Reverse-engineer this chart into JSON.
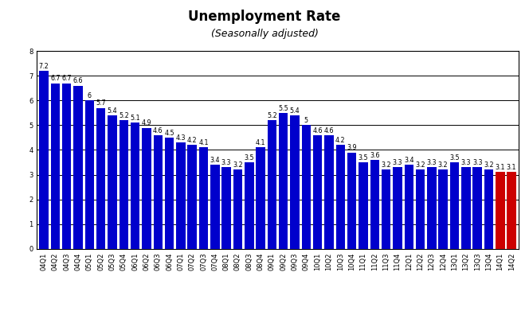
{
  "categories": [
    "04Q1",
    "04Q2",
    "04Q3",
    "04Q4",
    "05Q1",
    "05Q2",
    "05Q3",
    "05Q4",
    "06Q1",
    "06Q2",
    "06Q3",
    "06Q4",
    "07Q1",
    "07Q2",
    "07Q3",
    "07Q4",
    "08Q1",
    "08Q2",
    "08Q3",
    "08Q4",
    "09Q1",
    "09Q2",
    "09Q3",
    "09Q4",
    "10Q1",
    "10Q2",
    "10Q3",
    "10Q4",
    "11Q1",
    "11Q2",
    "11Q3",
    "11Q4",
    "12Q1",
    "12Q2",
    "12Q3",
    "12Q4",
    "13Q1",
    "13Q2",
    "13Q3",
    "13Q4",
    "14Q1",
    "14Q2"
  ],
  "values": [
    7.2,
    6.7,
    6.7,
    6.6,
    6.0,
    5.7,
    5.4,
    5.2,
    5.1,
    4.9,
    4.6,
    4.5,
    4.3,
    4.2,
    4.1,
    3.4,
    3.3,
    3.2,
    3.5,
    4.1,
    5.2,
    5.5,
    5.4,
    5.0,
    4.6,
    4.6,
    4.2,
    3.9,
    3.5,
    3.6,
    3.2,
    3.3,
    3.4,
    3.2,
    3.3,
    3.2,
    3.5,
    3.3,
    3.3,
    3.2,
    3.1,
    3.1
  ],
  "title": "Unemployment Rate",
  "subtitle": "(Seasonally adjusted)",
  "ylim": [
    0,
    8
  ],
  "yticks": [
    0,
    1,
    2,
    3,
    4,
    5,
    6,
    7,
    8
  ],
  "bar_color_blue": "#0000cc",
  "bar_color_red": "#cc0000",
  "background_color": "#ffffff",
  "grid_color": "#000000",
  "title_fontsize": 12,
  "subtitle_fontsize": 9,
  "label_fontsize": 5.8,
  "tick_fontsize": 6.0,
  "num_blue": 40,
  "num_red": 2
}
